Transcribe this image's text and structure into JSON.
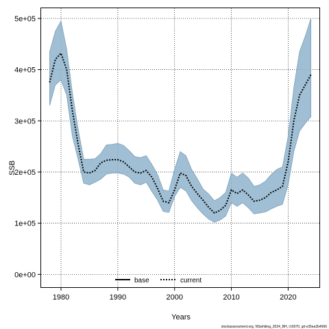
{
  "chart_data": {
    "type": "line",
    "xlabel": "Years",
    "ylabel": "SSB",
    "xlim": [
      1976.5,
      2025.5
    ],
    "ylim": [
      -25000,
      520000
    ],
    "x_ticks": [
      1980,
      1990,
      2000,
      2010,
      2020
    ],
    "y_ticks": [
      0,
      100000,
      200000,
      300000,
      400000,
      500000
    ],
    "y_tick_labels": [
      "0e+00",
      "1e+05",
      "2e+05",
      "3e+05",
      "4e+05",
      "5e+05"
    ],
    "grid": true,
    "legend": {
      "placement": "bottom-center",
      "entries": [
        {
          "label": "base",
          "style": "solid",
          "color": "#000000"
        },
        {
          "label": "current",
          "style": "dotted",
          "color": "#000000"
        }
      ]
    },
    "band_color": "#8fb4cc",
    "band_edge_color": "#7a9fb8",
    "series": [
      {
        "name": "current",
        "x": [
          1978,
          1979,
          1980,
          1981,
          1982,
          1983,
          1984,
          1985,
          1986,
          1987,
          1988,
          1989,
          1990,
          1991,
          1992,
          1993,
          1994,
          1995,
          1996,
          1997,
          1998,
          1999,
          2000,
          2001,
          2002,
          2003,
          2004,
          2005,
          2006,
          2007,
          2008,
          2009,
          2010,
          2011,
          2012,
          2013,
          2014,
          2015,
          2016,
          2017,
          2018,
          2019,
          2020,
          2021,
          2022,
          2023,
          2024
        ],
        "y": [
          375000,
          420000,
          432000,
          400000,
          320000,
          255000,
          200000,
          198000,
          203000,
          218000,
          223000,
          224000,
          224000,
          220000,
          210000,
          200000,
          198000,
          203000,
          190000,
          168000,
          143000,
          140000,
          165000,
          198000,
          193000,
          172000,
          158000,
          145000,
          131000,
          120000,
          125000,
          135000,
          165000,
          158000,
          165000,
          155000,
          143000,
          145000,
          150000,
          160000,
          165000,
          172000,
          220000,
          300000,
          350000,
          370000,
          390000
        ],
        "lower": [
          330000,
          370000,
          380000,
          350000,
          270000,
          225000,
          178000,
          175000,
          180000,
          186000,
          196000,
          198000,
          198000,
          196000,
          190000,
          178000,
          175000,
          180000,
          162000,
          145000,
          123000,
          121000,
          152000,
          170000,
          163000,
          144000,
          130000,
          118000,
          108000,
          102000,
          106000,
          114000,
          140000,
          133000,
          140000,
          130000,
          118000,
          120000,
          122000,
          128000,
          133000,
          137000,
          175000,
          240000,
          280000,
          295000,
          308000
        ],
        "upper": [
          435000,
          475000,
          495000,
          440000,
          355000,
          285000,
          225000,
          225000,
          226000,
          236000,
          253000,
          254000,
          256000,
          252000,
          242000,
          230000,
          228000,
          232000,
          215000,
          195000,
          165000,
          163000,
          205000,
          240000,
          232000,
          205000,
          187000,
          167000,
          157000,
          144000,
          150000,
          160000,
          198000,
          190000,
          198000,
          188000,
          172000,
          175000,
          182000,
          195000,
          205000,
          210000,
          270000,
          365000,
          435000,
          465000,
          500000
        ]
      }
    ]
  },
  "footer": "stockassessment.org, NSwhiting_2024_BH, r16070, git e35ea2b4966"
}
